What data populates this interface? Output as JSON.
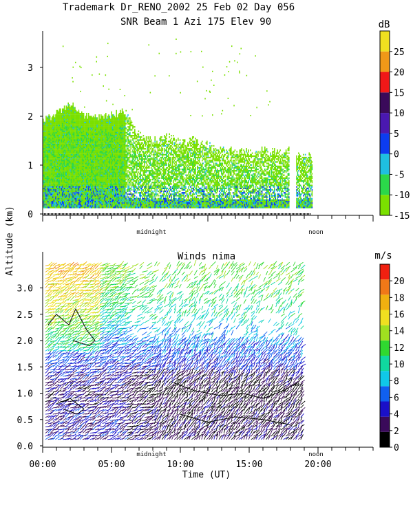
{
  "header": {
    "line1": "Trademark Dr_RENO_2002  25 Feb 02 Day 056",
    "line2": "SNR Beam 1 Azi 175 Elev 90"
  },
  "chart_data": [
    {
      "type": "heatmap",
      "title": "SNR Beam 1 Azi 175 Elev 90",
      "ylabel": "Altitude (km)",
      "ylim": [
        0,
        3.7
      ],
      "yticks": [
        "0",
        "1",
        "2",
        "3"
      ],
      "x_markers": [
        "midnight",
        "noon"
      ],
      "colorbar": {
        "unit": "dB",
        "ticks": [
          "-15",
          "-10",
          "-5",
          "0",
          "5",
          "10",
          "15",
          "20",
          "25"
        ],
        "range": [
          -15,
          30
        ],
        "colors": [
          "#7be000",
          "#2bd84a",
          "#1fbfe0",
          "#0c3cf0",
          "#4a18b0",
          "#3a0a5a",
          "#f01818",
          "#f09818",
          "#f0e020"
        ]
      },
      "description_data": {
        "cloud_top_km_by_hour": [
          [
            0,
            1.9
          ],
          [
            1,
            2.05
          ],
          [
            2,
            2.25
          ],
          [
            3,
            2.0
          ],
          [
            4,
            1.95
          ],
          [
            5,
            2.0
          ],
          [
            6,
            2.1
          ],
          [
            7,
            1.6
          ],
          [
            8,
            1.5
          ],
          [
            9,
            1.6
          ],
          [
            10,
            1.45
          ],
          [
            11,
            1.5
          ],
          [
            12,
            1.4
          ],
          [
            13,
            1.35
          ],
          [
            14,
            1.3
          ],
          [
            15,
            1.25
          ],
          [
            16,
            1.3
          ],
          [
            17,
            1.25
          ],
          [
            17.9,
            1.3
          ],
          [
            18.5,
            1.2
          ],
          [
            19.6,
            1.2
          ]
        ],
        "gap_hours": [
          17.9,
          18.4
        ]
      }
    },
    {
      "type": "scatter",
      "title": "Winds nima",
      "xlabel": "Time (UT)",
      "ylabel": "Altitude (km)",
      "xlim": [
        0,
        24
      ],
      "ylim": [
        0,
        3.5
      ],
      "xticks": [
        "00:00",
        "05:00",
        "10:00",
        "15:00",
        "20:00"
      ],
      "yticks": [
        "0.0",
        "0.5",
        "1.0",
        "1.5",
        "2.0",
        "2.5",
        "3.0"
      ],
      "x_markers": [
        "midnight",
        "noon"
      ],
      "colorbar": {
        "unit": "m/s",
        "ticks": [
          "0",
          "2",
          "4",
          "6",
          "8",
          "10",
          "12",
          "14",
          "16",
          "18",
          "20"
        ],
        "range": [
          0,
          22
        ],
        "colors": [
          "#000000",
          "#3a0a5a",
          "#1a10c8",
          "#1060f0",
          "#10c8e8",
          "#10d8a0",
          "#30d830",
          "#a0e020",
          "#f0e020",
          "#f0b010",
          "#f07818",
          "#f02010"
        ]
      },
      "wind_speed_profile_ms": [
        {
          "altitude_km": 0.2,
          "speed": 4
        },
        {
          "altitude_km": 0.6,
          "speed": 4
        },
        {
          "altitude_km": 1.0,
          "speed": 3
        },
        {
          "altitude_km": 1.5,
          "speed": 5
        },
        {
          "altitude_km": 2.0,
          "speed": 7
        },
        {
          "altitude_km": 2.5,
          "speed": 10
        },
        {
          "altitude_km": 3.0,
          "speed": 12
        },
        {
          "altitude_km": 3.4,
          "speed": 13
        }
      ],
      "data_end_hour": 18.8
    }
  ]
}
